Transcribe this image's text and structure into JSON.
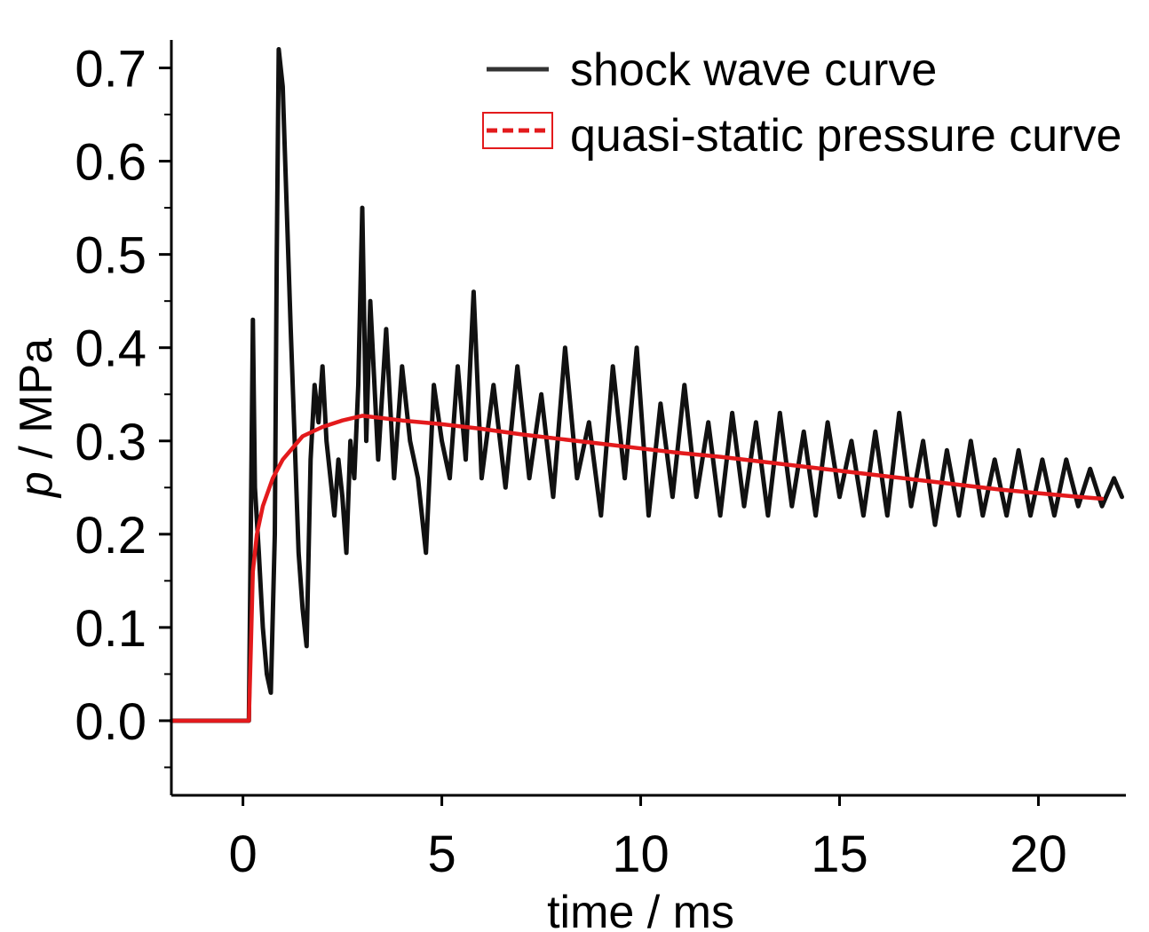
{
  "chart_data": {
    "type": "line",
    "xlabel": "time / ms",
    "ylabel_italic": "p",
    "ylabel_rest": " / MPa",
    "xlim": [
      -1.8,
      22.2
    ],
    "ylim": [
      -0.08,
      0.73
    ],
    "xticks": [
      0,
      5,
      10,
      15,
      20
    ],
    "xtick_labels": [
      "0",
      "5",
      "10",
      "15",
      "20"
    ],
    "yticks": [
      0.0,
      0.1,
      0.2,
      0.3,
      0.4,
      0.5,
      0.6,
      0.7
    ],
    "ytick_labels": [
      "0.0",
      "0.1",
      "0.2",
      "0.3",
      "0.4",
      "0.5",
      "0.6",
      "0.7"
    ],
    "grid": false,
    "legend_position": "top-right",
    "series": [
      {
        "name": "shock wave curve",
        "color": "#111111",
        "x": [
          -1.8,
          0.0,
          0.15,
          0.25,
          0.3,
          0.4,
          0.5,
          0.6,
          0.7,
          0.8,
          0.85,
          0.9,
          1.0,
          1.1,
          1.2,
          1.3,
          1.4,
          1.5,
          1.6,
          1.7,
          1.8,
          1.9,
          2.0,
          2.1,
          2.2,
          2.3,
          2.4,
          2.5,
          2.6,
          2.7,
          2.8,
          2.9,
          3.0,
          3.1,
          3.2,
          3.4,
          3.6,
          3.8,
          4.0,
          4.2,
          4.4,
          4.6,
          4.8,
          5.0,
          5.2,
          5.4,
          5.6,
          5.8,
          6.0,
          6.3,
          6.6,
          6.9,
          7.2,
          7.5,
          7.8,
          8.1,
          8.4,
          8.7,
          9.0,
          9.3,
          9.6,
          9.9,
          10.2,
          10.5,
          10.8,
          11.1,
          11.4,
          11.7,
          12.0,
          12.3,
          12.6,
          12.9,
          13.2,
          13.5,
          13.8,
          14.1,
          14.4,
          14.7,
          15.0,
          15.3,
          15.6,
          15.9,
          16.2,
          16.5,
          16.8,
          17.1,
          17.4,
          17.7,
          18.0,
          18.3,
          18.6,
          18.9,
          19.2,
          19.5,
          19.8,
          20.1,
          20.4,
          20.7,
          21.0,
          21.3,
          21.6,
          21.9,
          22.1
        ],
        "y": [
          0.0,
          0.0,
          0.0,
          0.43,
          0.25,
          0.18,
          0.1,
          0.05,
          0.03,
          0.2,
          0.5,
          0.72,
          0.68,
          0.55,
          0.42,
          0.3,
          0.18,
          0.12,
          0.08,
          0.28,
          0.36,
          0.32,
          0.38,
          0.3,
          0.26,
          0.22,
          0.28,
          0.24,
          0.18,
          0.3,
          0.26,
          0.36,
          0.55,
          0.3,
          0.45,
          0.28,
          0.42,
          0.26,
          0.38,
          0.3,
          0.26,
          0.18,
          0.36,
          0.3,
          0.26,
          0.38,
          0.28,
          0.46,
          0.26,
          0.36,
          0.25,
          0.38,
          0.26,
          0.35,
          0.24,
          0.4,
          0.26,
          0.32,
          0.22,
          0.38,
          0.26,
          0.4,
          0.22,
          0.34,
          0.24,
          0.36,
          0.24,
          0.32,
          0.22,
          0.33,
          0.23,
          0.32,
          0.22,
          0.33,
          0.23,
          0.31,
          0.22,
          0.32,
          0.24,
          0.3,
          0.22,
          0.31,
          0.22,
          0.33,
          0.23,
          0.3,
          0.21,
          0.29,
          0.22,
          0.3,
          0.22,
          0.28,
          0.22,
          0.29,
          0.22,
          0.28,
          0.22,
          0.28,
          0.23,
          0.27,
          0.23,
          0.26,
          0.24
        ]
      },
      {
        "name": "quasi-static pressure curve",
        "color": "#e31a1c",
        "x": [
          -1.8,
          0.0,
          0.15,
          0.2,
          0.25,
          0.35,
          0.5,
          0.75,
          1.0,
          1.5,
          2.0,
          2.5,
          3.0,
          4.0,
          5.0,
          6.0,
          7.0,
          8.0,
          9.0,
          10.0,
          11.0,
          12.0,
          13.0,
          14.0,
          15.0,
          16.0,
          17.0,
          18.0,
          19.0,
          20.0,
          21.0,
          21.6
        ],
        "y": [
          0.0,
          0.0,
          0.0,
          0.08,
          0.16,
          0.2,
          0.23,
          0.26,
          0.28,
          0.305,
          0.315,
          0.322,
          0.327,
          0.322,
          0.318,
          0.313,
          0.307,
          0.302,
          0.297,
          0.292,
          0.287,
          0.283,
          0.278,
          0.273,
          0.268,
          0.263,
          0.258,
          0.253,
          0.248,
          0.244,
          0.24,
          0.238
        ]
      }
    ]
  }
}
